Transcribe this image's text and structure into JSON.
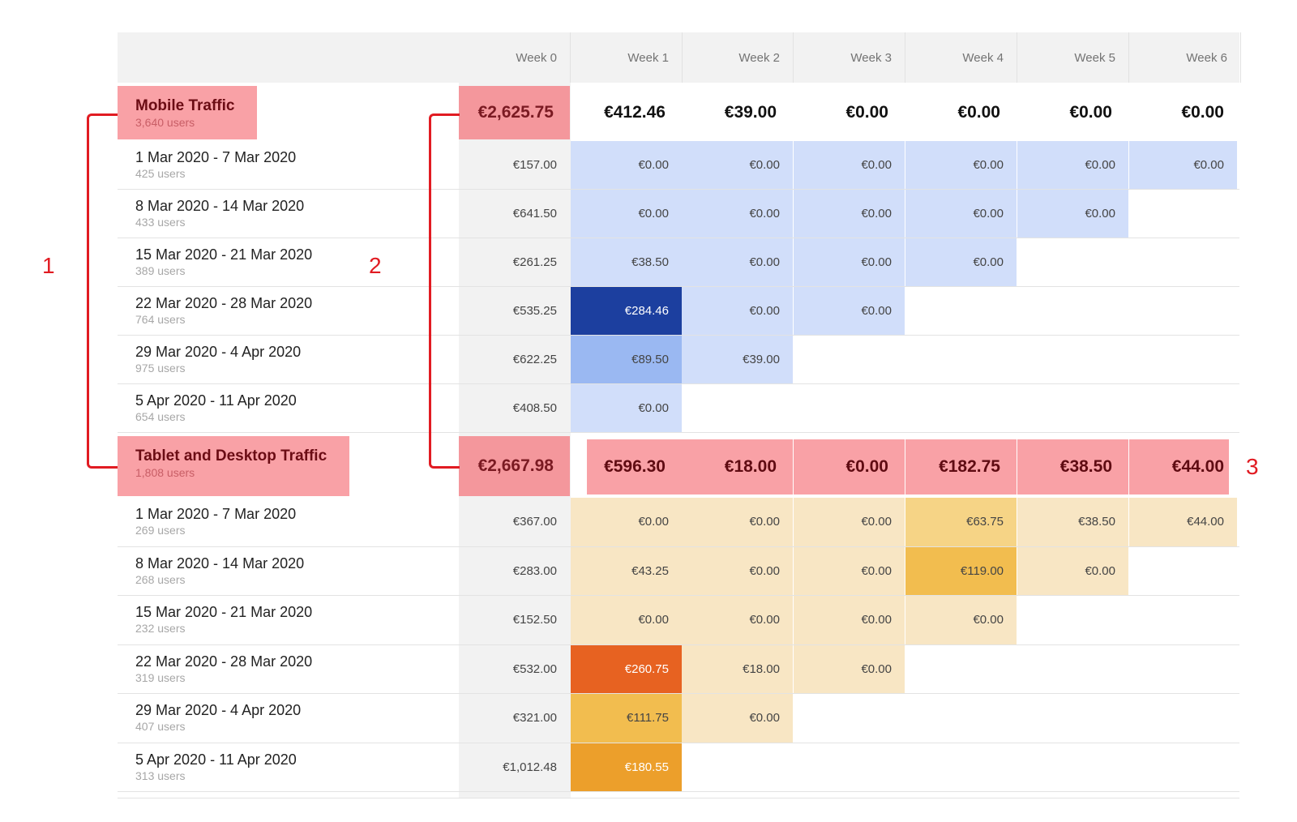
{
  "weeks": [
    "Week 0",
    "Week 1",
    "Week 2",
    "Week 3",
    "Week 4",
    "Week 5",
    "Week 6"
  ],
  "segments": [
    {
      "name": "Mobile Traffic",
      "users": "3,640 users",
      "totals": [
        "€2,625.75",
        "€412.46",
        "€39.00",
        "€0.00",
        "€0.00",
        "€0.00",
        "€0.00"
      ],
      "cohorts": [
        {
          "range": "1 Mar 2020 - 7 Mar 2020",
          "users": "425 users",
          "values": [
            "€157.00",
            "€0.00",
            "€0.00",
            "€0.00",
            "€0.00",
            "€0.00",
            "€0.00"
          ]
        },
        {
          "range": "8 Mar 2020 - 14 Mar 2020",
          "users": "433 users",
          "values": [
            "€641.50",
            "€0.00",
            "€0.00",
            "€0.00",
            "€0.00",
            "€0.00"
          ]
        },
        {
          "range": "15 Mar 2020 - 21 Mar 2020",
          "users": "389 users",
          "values": [
            "€261.25",
            "€38.50",
            "€0.00",
            "€0.00",
            "€0.00"
          ]
        },
        {
          "range": "22 Mar 2020 - 28 Mar 2020",
          "users": "764 users",
          "values": [
            "€535.25",
            "€284.46",
            "€0.00",
            "€0.00"
          ]
        },
        {
          "range": "29 Mar 2020 - 4 Apr 2020",
          "users": "975 users",
          "values": [
            "€622.25",
            "€89.50",
            "€39.00"
          ]
        },
        {
          "range": "5 Apr 2020 - 11 Apr 2020",
          "users": "654 users",
          "values": [
            "€408.50",
            "€0.00"
          ]
        }
      ]
    },
    {
      "name": "Tablet and Desktop Traffic",
      "users": "1,808 users",
      "totals": [
        "€2,667.98",
        "€596.30",
        "€18.00",
        "€0.00",
        "€182.75",
        "€38.50",
        "€44.00"
      ],
      "cohorts": [
        {
          "range": "1 Mar 2020 - 7 Mar 2020",
          "users": "269 users",
          "values": [
            "€367.00",
            "€0.00",
            "€0.00",
            "€0.00",
            "€63.75",
            "€38.50",
            "€44.00"
          ]
        },
        {
          "range": "8 Mar 2020 - 14 Mar 2020",
          "users": "268 users",
          "values": [
            "€283.00",
            "€43.25",
            "€0.00",
            "€0.00",
            "€119.00",
            "€0.00"
          ]
        },
        {
          "range": "15 Mar 2020 - 21 Mar 2020",
          "users": "232 users",
          "values": [
            "€152.50",
            "€0.00",
            "€0.00",
            "€0.00",
            "€0.00"
          ]
        },
        {
          "range": "22 Mar 2020 - 28 Mar 2020",
          "users": "319 users",
          "values": [
            "€532.00",
            "€260.75",
            "€18.00",
            "€0.00"
          ]
        },
        {
          "range": "29 Mar 2020 - 4 Apr 2020",
          "users": "407 users",
          "values": [
            "€321.00",
            "€111.75",
            "€0.00"
          ]
        },
        {
          "range": "5 Apr 2020 - 11 Apr 2020",
          "users": "313 users",
          "values": [
            "€1,012.48",
            "€180.55"
          ]
        }
      ]
    }
  ],
  "annotations": [
    "1",
    "2",
    "3"
  ],
  "colors": {
    "header_bg": "#f2f2f2",
    "segment_highlight": "#f9a1a6",
    "annotation_red": "#e11b22",
    "blue_scale": [
      "#d1defa",
      "#9ab8f2",
      "#1c3f9f"
    ],
    "orange_scale": [
      "#f8e6c4",
      "#f6d486",
      "#f2bd4f",
      "#ec9f2b",
      "#e76221"
    ]
  }
}
